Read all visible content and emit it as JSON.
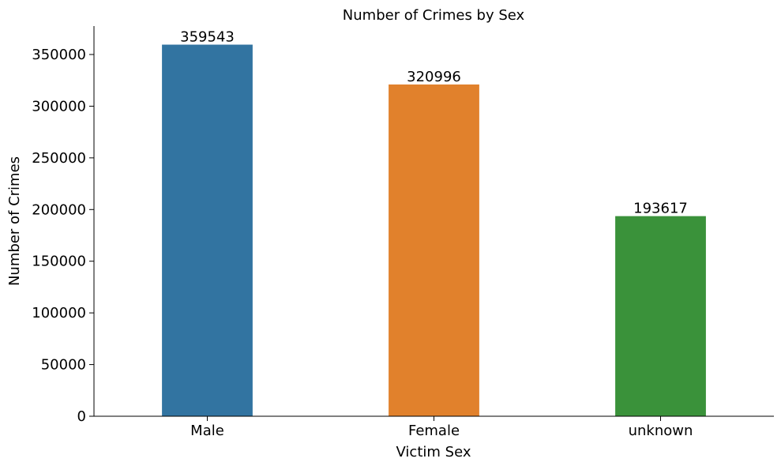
{
  "chart_data": {
    "type": "bar",
    "title": "Number of Crimes by Sex",
    "xlabel": "Victim Sex",
    "ylabel": "Number of Crimes",
    "categories": [
      "Male",
      "Female",
      "unknown"
    ],
    "values": [
      359543,
      320996,
      193617
    ],
    "data_labels": [
      "359543",
      "320996",
      "193617"
    ],
    "colors": [
      "#3274a1",
      "#e1812c",
      "#3a923a"
    ],
    "ylim": [
      0,
      377520
    ],
    "yticks": [
      0,
      50000,
      100000,
      150000,
      200000,
      250000,
      300000,
      350000
    ],
    "ytick_labels": [
      "0",
      "50000",
      "100000",
      "150000",
      "200000",
      "250000",
      "300000",
      "350000"
    ],
    "grid": false,
    "legend": "none"
  }
}
